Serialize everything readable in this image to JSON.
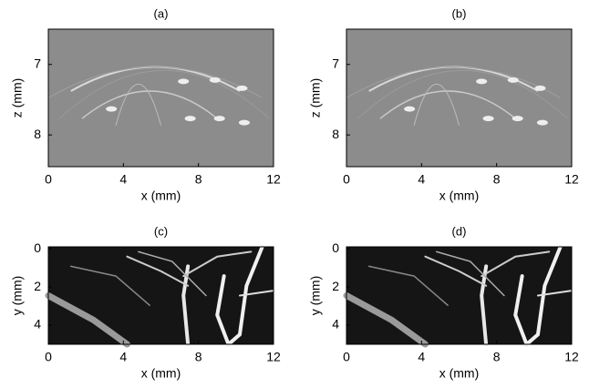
{
  "chart_data": [
    {
      "type": "image",
      "title": "(a)",
      "xlabel": "x (mm)",
      "ylabel": "z (mm)",
      "xlim": [
        0,
        12
      ],
      "xticks": [
        0,
        4,
        8,
        12
      ],
      "ylim": [
        6.5,
        8.45
      ],
      "yticks": [
        7,
        8
      ],
      "y_reversed": true,
      "style": "bmode"
    },
    {
      "type": "image",
      "title": "(b)",
      "xlabel": "x (mm)",
      "ylabel": "z (mm)",
      "xlim": [
        0,
        12
      ],
      "xticks": [
        0,
        4,
        8,
        12
      ],
      "ylim": [
        6.5,
        8.45
      ],
      "yticks": [
        7,
        8
      ],
      "y_reversed": true,
      "style": "bmode"
    },
    {
      "type": "image",
      "title": "(c)",
      "xlabel": "x (mm)",
      "ylabel": "y (mm)",
      "xlim": [
        0,
        12
      ],
      "xticks": [
        0,
        4,
        8,
        12
      ],
      "ylim": [
        -0.1,
        5
      ],
      "yticks": [
        0,
        2,
        4
      ],
      "y_reversed": true,
      "style": "vessels"
    },
    {
      "type": "image",
      "title": "(d)",
      "xlabel": "x (mm)",
      "ylabel": "y (mm)",
      "xlim": [
        0,
        12
      ],
      "xticks": [
        0,
        4,
        8,
        12
      ],
      "ylim": [
        -0.1,
        5
      ],
      "yticks": [
        0,
        2,
        4
      ],
      "y_reversed": true,
      "style": "vessels"
    }
  ]
}
